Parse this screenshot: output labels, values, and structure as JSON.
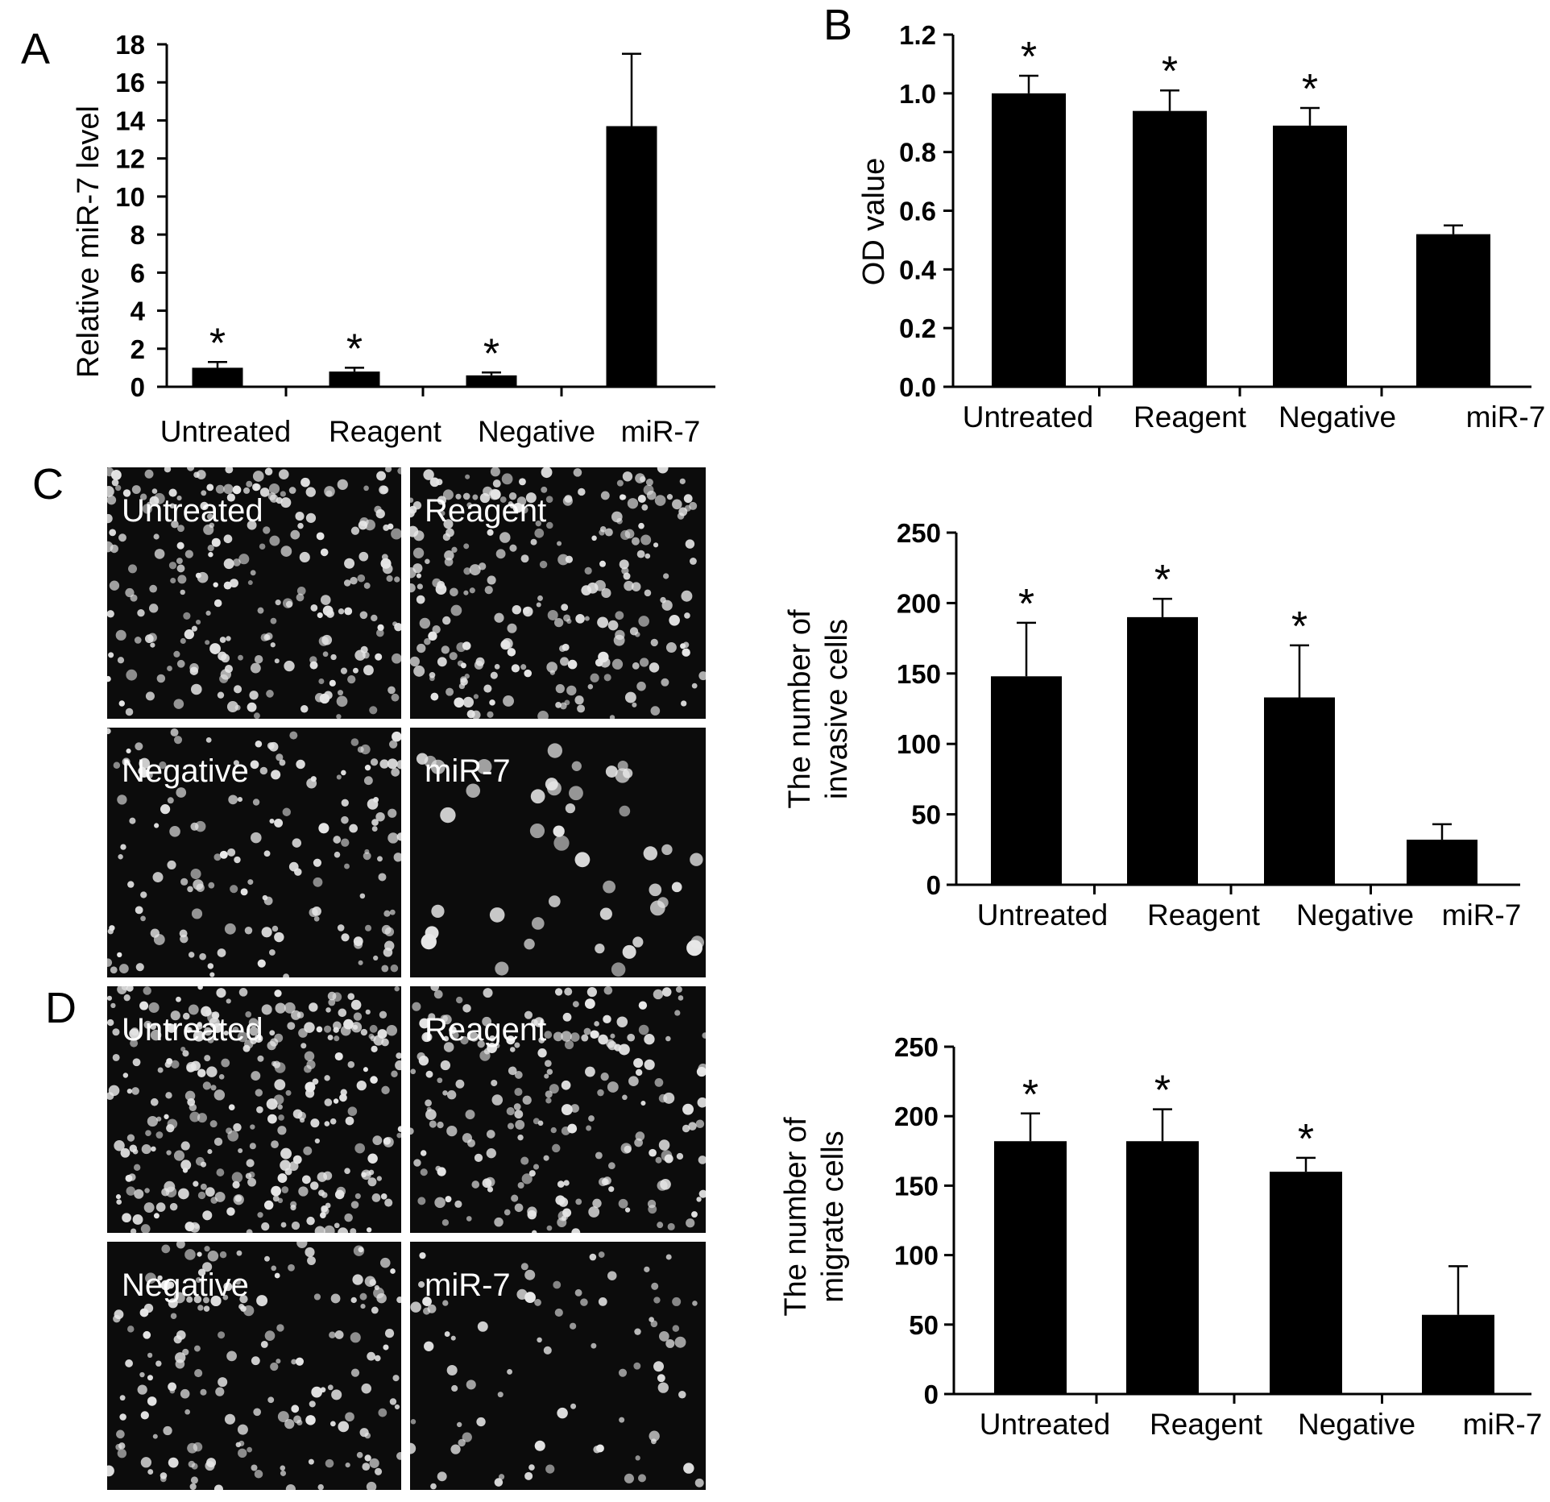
{
  "panels": {
    "A": "A",
    "B": "B",
    "C": "C",
    "D": "D"
  },
  "colors": {
    "bar": "#000000",
    "axis": "#000000",
    "micrograph_background": "#0c0c0c",
    "cells": "#e8e8e8"
  },
  "micrograph_labels": {
    "C": [
      "Untreated",
      "Reagent",
      "Negative",
      "miR-7"
    ],
    "D": [
      "Untreated",
      "Reagent",
      "Negative",
      "miR-7"
    ]
  },
  "chart_data": [
    {
      "id": "A",
      "type": "bar",
      "categories": [
        "Untreated",
        "Reagent",
        "Negative",
        "miR-7"
      ],
      "values": [
        1.0,
        0.8,
        0.6,
        13.7
      ],
      "errors": [
        0.3,
        0.2,
        0.15,
        3.8
      ],
      "significant": [
        true,
        true,
        true,
        false
      ],
      "ylabel": "Relative miR-7 level",
      "ylim": [
        0,
        18
      ],
      "yticks": [
        "0",
        "2",
        "4",
        "6",
        "8",
        "10",
        "12",
        "14",
        "16",
        "18"
      ],
      "marker": "*"
    },
    {
      "id": "B",
      "type": "bar",
      "categories": [
        "Untreated",
        "Reagent",
        "Negative",
        "miR-7"
      ],
      "values": [
        1.0,
        0.94,
        0.89,
        0.52
      ],
      "errors": [
        0.06,
        0.07,
        0.06,
        0.03
      ],
      "significant": [
        true,
        true,
        true,
        false
      ],
      "ylabel": "OD value",
      "ylim": [
        0,
        1.2
      ],
      "yticks": [
        "0.0",
        "0.2",
        "0.4",
        "0.6",
        "0.8",
        "1.0",
        "1.2"
      ],
      "marker": "*"
    },
    {
      "id": "C",
      "type": "bar",
      "categories": [
        "Untreated",
        "Reagent",
        "Negative",
        "miR-7"
      ],
      "values": [
        148,
        190,
        133,
        32
      ],
      "errors": [
        38,
        13,
        37,
        11
      ],
      "significant": [
        true,
        true,
        true,
        false
      ],
      "ylabel": [
        "The number of",
        "invasive cells"
      ],
      "ylim": [
        0,
        250
      ],
      "yticks": [
        "0",
        "50",
        "100",
        "150",
        "200",
        "250"
      ],
      "marker": "*"
    },
    {
      "id": "D",
      "type": "bar",
      "categories": [
        "Untreated",
        "Reagent",
        "Negative",
        "miR-7"
      ],
      "values": [
        182,
        182,
        160,
        57
      ],
      "errors": [
        20,
        23,
        10,
        35
      ],
      "significant": [
        true,
        true,
        true,
        false
      ],
      "ylabel": [
        "The number of",
        "migrate cells"
      ],
      "ylim": [
        0,
        250
      ],
      "yticks": [
        "0",
        "50",
        "100",
        "150",
        "200",
        "250"
      ],
      "marker": "*"
    }
  ]
}
